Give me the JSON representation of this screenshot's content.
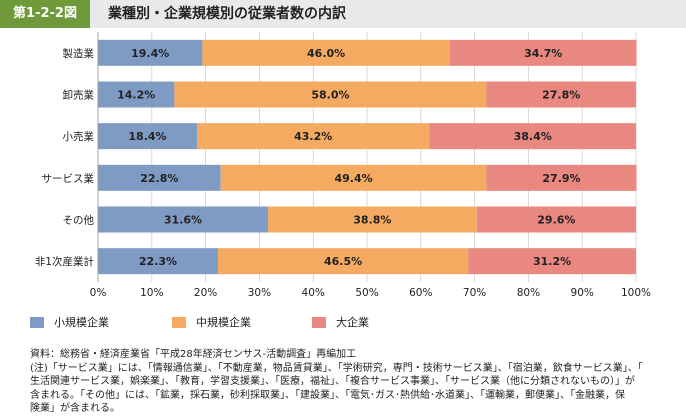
{
  "figure": {
    "number": "第1-2-2図",
    "title": "業種別・企業規模別の従業者数の内訳"
  },
  "chart_data": {
    "type": "bar",
    "orientation": "horizontal",
    "stacked": true,
    "percent": true,
    "categories": [
      "製造業",
      "卸売業",
      "小売業",
      "サービス業",
      "その他",
      "非1次産業計"
    ],
    "series": [
      {
        "name": "小規模企業",
        "color": "#7f9bc4",
        "values": [
          19.4,
          14.2,
          18.4,
          22.8,
          31.6,
          22.3
        ],
        "labels": [
          "19.4%",
          "14.2%",
          "18.4%",
          "22.8%",
          "31.6%",
          "22.3%"
        ]
      },
      {
        "name": "中規模企業",
        "color": "#f4aa61",
        "values": [
          46.0,
          58.0,
          43.2,
          49.4,
          38.8,
          46.5
        ],
        "labels": [
          "46.0%",
          "58.0%",
          "43.2%",
          "49.4%",
          "38.8%",
          "46.5%"
        ]
      },
      {
        "name": "大企業",
        "color": "#e98781",
        "values": [
          34.7,
          27.8,
          38.4,
          27.9,
          29.6,
          31.2
        ],
        "labels": [
          "34.7%",
          "27.8%",
          "38.4%",
          "27.9%",
          "29.6%",
          "31.2%"
        ]
      }
    ],
    "xlim": [
      0,
      100
    ],
    "xticks": [
      0,
      10,
      20,
      30,
      40,
      50,
      60,
      70,
      80,
      90,
      100
    ],
    "xtick_labels": [
      "0%",
      "10%",
      "20%",
      "30%",
      "40%",
      "50%",
      "60%",
      "70%",
      "80%",
      "90%",
      "100%"
    ],
    "grid": true,
    "legend_position": "bottom-left"
  },
  "notes": [
    "資料：総務省・経済産業省「平成28年経済センサス-活動調査」再編加工",
    "(注)「サービス業」には、「情報通信業」、「不動産業，物品賃貸業」、「学術研究，専門・技術サービス業」、「宿泊業，飲食サービス業」、「",
    "生活関連サービス業，娯楽業」、「教育，学習支援業」、「医療，福祉」、「複合サービス事業」、「サービス業（他に分類されないもの）」が",
    "含まれる。「その他」には、「鉱業，採石業，砂利採取業」、「建設業」、「電気･ガス･熱供給･水道業」、「運輸業，郵便業」、「金融業，保",
    "険業」が含まれる。"
  ]
}
